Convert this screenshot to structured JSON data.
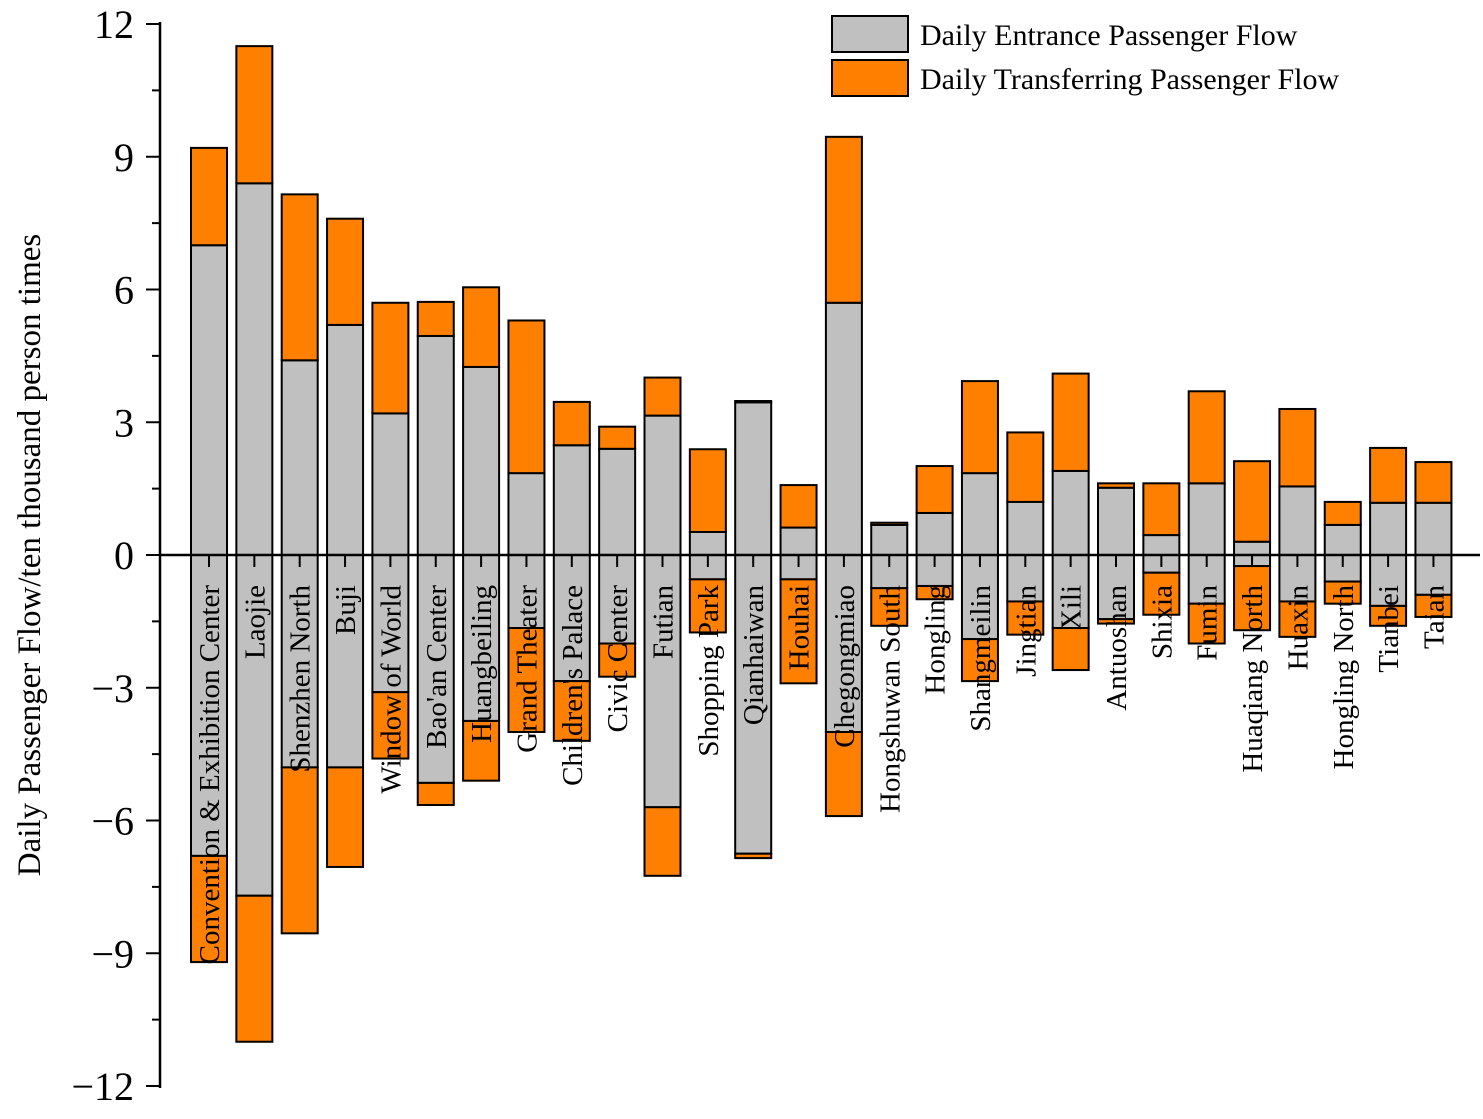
{
  "chart_data": {
    "type": "bar",
    "stacked": true,
    "diverging": true,
    "ylabel": "Daily Passenger Flow/ten thousand person times",
    "xlabel": "",
    "ylim": [
      -12,
      12
    ],
    "yticks": [
      12,
      9,
      6,
      3,
      0,
      -3,
      -6,
      -9,
      -12
    ],
    "ytick_labels": [
      "12",
      "9",
      "6",
      "3",
      "0",
      "−3",
      "−6",
      "−9",
      "−12"
    ],
    "grid": false,
    "legend_position": "top-right",
    "categories": [
      "Convention & Exhibition Center",
      "Laojie",
      "Shenzhen North",
      "Buji",
      "Window of World",
      "Bao'an Center",
      "Huangbeiling",
      "Grand Theater",
      "Children's Palace",
      "Civic Center",
      "Futian",
      "Shopping Park",
      "Qianhaiwan",
      "Houhai",
      "Chegongmiao",
      "Hongshuwan South",
      "Hongling",
      "Shangmeilin",
      "Jingtian",
      "Xili",
      "Antuoshan",
      "Shixia",
      "Fumin",
      "Huaqiang North",
      "Huaxin",
      "Hongling North",
      "Tianbei",
      "Taian"
    ],
    "series": [
      {
        "name": "Daily Entrance Passenger Flow",
        "color": "#C0C0C0",
        "positive": [
          7.0,
          8.4,
          4.4,
          5.2,
          3.2,
          4.95,
          4.25,
          1.85,
          2.48,
          2.4,
          3.15,
          0.52,
          3.45,
          0.62,
          5.7,
          0.68,
          0.95,
          1.85,
          1.2,
          1.9,
          1.52,
          0.45,
          1.62,
          0.3,
          1.55,
          0.68,
          1.18,
          1.18
        ],
        "negative": [
          -6.8,
          -7.7,
          -4.8,
          -4.8,
          -3.1,
          -5.15,
          -3.75,
          -1.65,
          -2.85,
          -2.0,
          -5.7,
          -0.55,
          -6.75,
          -0.55,
          -4.0,
          -0.75,
          -0.7,
          -1.9,
          -1.05,
          -1.65,
          -1.45,
          -0.4,
          -1.1,
          -0.25,
          -1.05,
          -0.6,
          -1.15,
          -0.9
        ]
      },
      {
        "name": "Daily Transferring Passenger Flow",
        "color": "#FF8000",
        "positive": [
          2.2,
          3.1,
          3.75,
          2.4,
          2.5,
          0.77,
          1.8,
          3.45,
          0.98,
          0.5,
          0.86,
          1.87,
          0.03,
          0.96,
          3.75,
          0.05,
          1.06,
          2.08,
          1.57,
          2.2,
          0.1,
          1.17,
          2.08,
          1.82,
          1.75,
          0.52,
          1.24,
          0.92
        ],
        "negative": [
          -2.4,
          -3.3,
          -3.75,
          -2.25,
          -1.5,
          -0.5,
          -1.35,
          -2.35,
          -1.35,
          -0.75,
          -1.55,
          -1.2,
          -0.1,
          -2.35,
          -1.9,
          -0.85,
          -0.3,
          -0.95,
          -0.75,
          -0.95,
          -0.1,
          -0.95,
          -0.9,
          -1.45,
          -0.8,
          -0.5,
          -0.45,
          -0.5
        ]
      }
    ]
  }
}
